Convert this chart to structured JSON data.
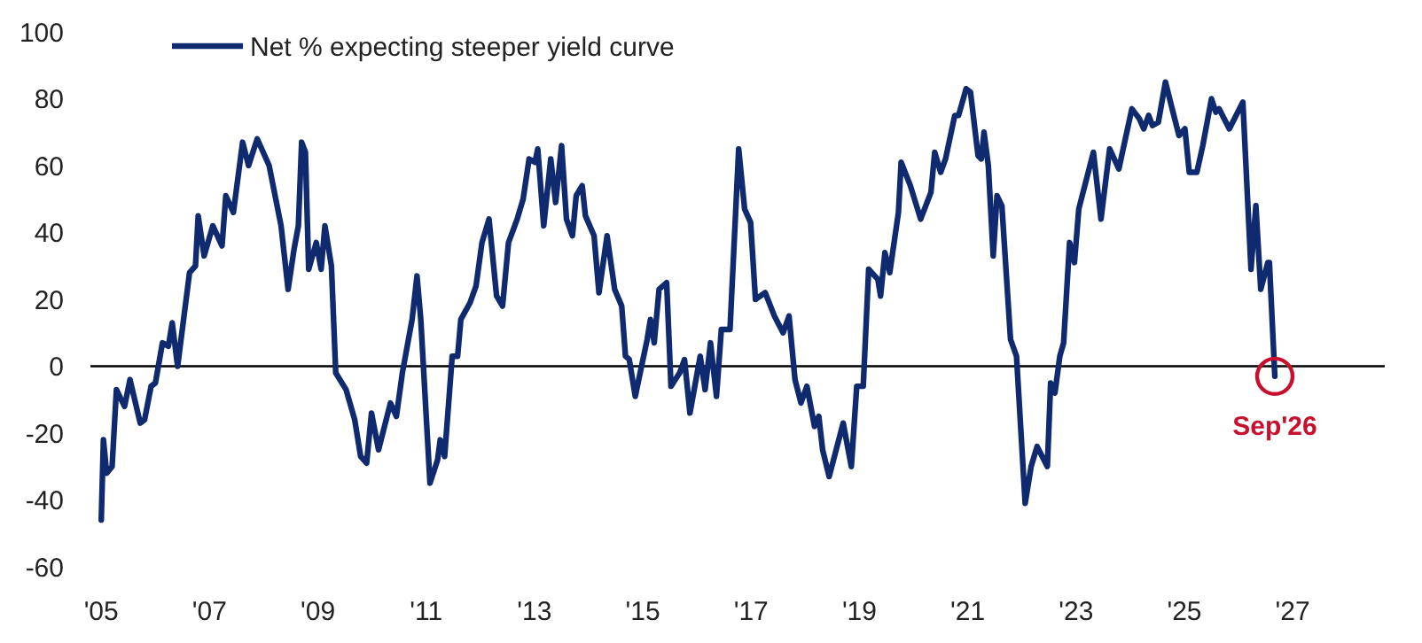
{
  "chart_data": {
    "type": "line",
    "legend": "top left",
    "grid": false,
    "line_style": "solid",
    "marker": "none",
    "xlim": [
      2004.8,
      2028.7
    ],
    "xticks": [
      {
        "value": 2005,
        "label": "'05"
      },
      {
        "value": 2007,
        "label": "'07"
      },
      {
        "value": 2009,
        "label": "'09"
      },
      {
        "value": 2011,
        "label": "'11"
      },
      {
        "value": 2013,
        "label": "'13"
      },
      {
        "value": 2015,
        "label": "'15"
      },
      {
        "value": 2017,
        "label": "'17"
      },
      {
        "value": 2019,
        "label": "'19"
      },
      {
        "value": 2021,
        "label": "'21"
      },
      {
        "value": 2023,
        "label": "'23"
      },
      {
        "value": 2025,
        "label": "'25"
      },
      {
        "value": 2027,
        "label": "'27"
      }
    ],
    "ylim": [
      -60,
      100
    ],
    "yticks": [
      -60,
      -40,
      -20,
      0,
      20,
      40,
      60,
      80,
      100
    ],
    "ref_lines": [
      {
        "axis": "y",
        "value": 0,
        "color": "#000000"
      }
    ],
    "annotations": [
      {
        "text": "Sep'26",
        "x": 2026.67,
        "y": -3
      }
    ],
    "series": [
      {
        "name": "Net % expecting steeper yield curve",
        "color": "#0f2a6e",
        "x": [
          2005.0,
          2005.04,
          2005.1,
          2005.2,
          2005.28,
          2005.43,
          2005.53,
          2005.72,
          2005.8,
          2005.92,
          2006.0,
          2006.13,
          2006.24,
          2006.31,
          2006.41,
          2006.63,
          2006.74,
          2006.79,
          2006.9,
          2007.06,
          2007.23,
          2007.3,
          2007.44,
          2007.61,
          2007.72,
          2007.88,
          2008.1,
          2008.32,
          2008.45,
          2008.56,
          2008.64,
          2008.7,
          2008.77,
          2008.83,
          2008.97,
          2009.06,
          2009.13,
          2009.25,
          2009.33,
          2009.52,
          2009.68,
          2009.79,
          2009.9,
          2009.99,
          2010.12,
          2010.34,
          2010.45,
          2010.56,
          2010.74,
          2010.83,
          2010.9,
          2011.07,
          2011.21,
          2011.26,
          2011.34,
          2011.48,
          2011.58,
          2011.64,
          2011.81,
          2011.92,
          2012.03,
          2012.16,
          2012.3,
          2012.41,
          2012.52,
          2012.68,
          2012.79,
          2012.9,
          2013.01,
          2013.06,
          2013.17,
          2013.3,
          2013.39,
          2013.5,
          2013.59,
          2013.7,
          2013.77,
          2013.88,
          2013.94,
          2014.1,
          2014.19,
          2014.34,
          2014.48,
          2014.61,
          2014.68,
          2014.75,
          2014.86,
          2015.08,
          2015.14,
          2015.21,
          2015.3,
          2015.44,
          2015.52,
          2015.68,
          2015.77,
          2015.87,
          2016.06,
          2016.15,
          2016.25,
          2016.36,
          2016.45,
          2016.61,
          2016.77,
          2016.88,
          2016.99,
          2017.08,
          2017.26,
          2017.43,
          2017.59,
          2017.7,
          2017.81,
          2017.92,
          2018.03,
          2018.17,
          2018.25,
          2018.32,
          2018.44,
          2018.57,
          2018.7,
          2018.85,
          2018.95,
          2019.07,
          2019.17,
          2019.34,
          2019.39,
          2019.47,
          2019.56,
          2019.72,
          2019.77,
          2019.94,
          2020.13,
          2020.32,
          2020.39,
          2020.5,
          2020.59,
          2020.76,
          2020.83,
          2020.97,
          2021.05,
          2021.19,
          2021.25,
          2021.3,
          2021.38,
          2021.47,
          2021.54,
          2021.63,
          2021.79,
          2021.9,
          2022.06,
          2022.17,
          2022.28,
          2022.47,
          2022.53,
          2022.61,
          2022.7,
          2022.77,
          2022.88,
          2022.97,
          2023.05,
          2023.32,
          2023.46,
          2023.62,
          2023.79,
          2024.03,
          2024.17,
          2024.25,
          2024.34,
          2024.41,
          2024.52,
          2024.65,
          2024.79,
          2024.9,
          2025.01,
          2025.09,
          2025.23,
          2025.34,
          2025.5,
          2025.58,
          2025.64,
          2025.83,
          2026.08,
          2026.23,
          2026.32,
          2026.41,
          2026.54,
          2026.57,
          2026.67
        ],
        "values": [
          -46,
          -22,
          -32,
          -30,
          -7,
          -12,
          -4,
          -17,
          -16,
          -6,
          -5,
          7,
          6,
          13,
          0,
          28,
          30,
          45,
          33,
          42,
          36,
          51,
          46,
          67,
          60,
          68,
          60,
          42,
          23,
          35,
          42,
          67,
          64,
          29,
          37,
          29,
          42,
          30,
          -2,
          -7,
          -16,
          -27,
          -29,
          -14,
          -25,
          -11,
          -15,
          -2,
          14,
          27,
          14,
          -35,
          -28,
          -22,
          -27,
          3,
          3,
          14,
          19,
          24,
          37,
          44,
          21,
          18,
          37,
          44,
          50,
          62,
          61,
          65,
          42,
          62,
          49,
          66,
          44,
          39,
          51,
          54,
          45,
          39,
          22,
          39,
          23,
          18,
          3,
          2,
          -9,
          8,
          14,
          7,
          23,
          25,
          -6,
          -2,
          2,
          -14,
          3,
          -7,
          7,
          -9,
          11,
          11,
          65,
          47,
          43,
          20,
          22,
          15,
          10,
          15,
          -4,
          -11,
          -6,
          -18,
          -15,
          -25,
          -33,
          -25,
          -17,
          -30,
          -6,
          -6,
          29,
          26,
          21,
          34,
          28,
          46,
          61,
          54,
          44,
          52,
          64,
          58,
          62,
          75,
          75,
          83,
          82,
          63,
          62,
          70,
          60,
          33,
          51,
          48,
          8,
          3,
          -41,
          -30,
          -24,
          -30,
          -5,
          -8,
          3,
          7,
          37,
          31,
          47,
          64,
          44,
          65,
          59,
          77,
          74,
          71,
          75,
          72,
          73,
          85,
          76,
          69,
          71,
          58,
          58,
          66,
          80,
          76,
          77,
          71,
          79,
          29,
          48,
          23,
          31,
          31,
          -3
        ]
      }
    ]
  }
}
